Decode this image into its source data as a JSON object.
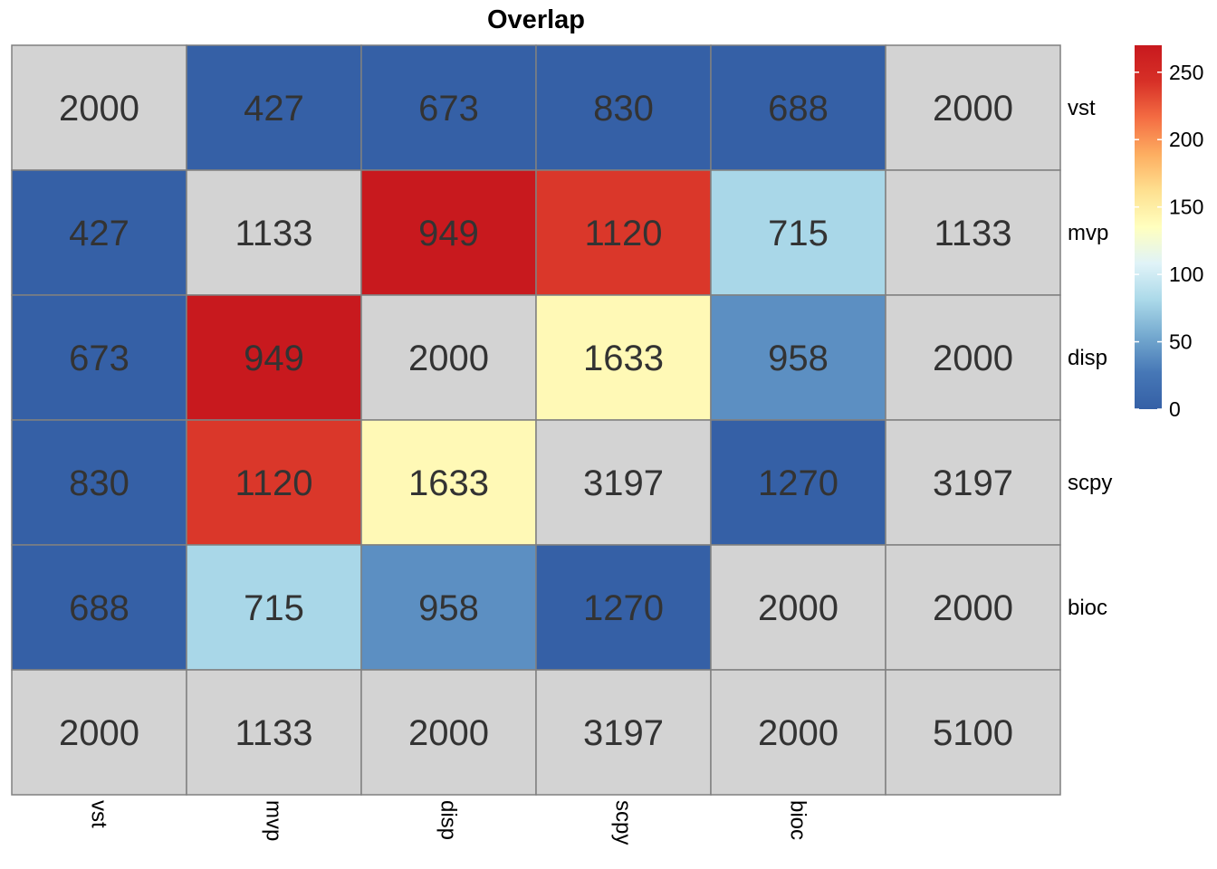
{
  "chart_data": {
    "type": "heatmap",
    "title": "Overlap",
    "row_labels": [
      "vst",
      "mvp",
      "disp",
      "scpy",
      "bioc",
      ""
    ],
    "col_labels": [
      "vst",
      "mvp",
      "disp",
      "scpy",
      "bioc",
      ""
    ],
    "values": [
      [
        2000,
        427,
        673,
        830,
        688,
        2000
      ],
      [
        427,
        1133,
        949,
        1120,
        715,
        1133
      ],
      [
        673,
        949,
        2000,
        1633,
        958,
        2000
      ],
      [
        830,
        1120,
        1633,
        3197,
        1270,
        3197
      ],
      [
        688,
        715,
        958,
        1270,
        2000,
        2000
      ],
      [
        2000,
        1133,
        2000,
        3197,
        2000,
        5100
      ]
    ],
    "fill_levels": [
      [
        null,
        0,
        0,
        0,
        0,
        null
      ],
      [
        0,
        null,
        270,
        240,
        80,
        null
      ],
      [
        0,
        270,
        null,
        140,
        40,
        null
      ],
      [
        0,
        240,
        140,
        null,
        0,
        null
      ],
      [
        0,
        80,
        40,
        0,
        null,
        null
      ],
      [
        null,
        null,
        null,
        null,
        null,
        null
      ]
    ],
    "na_color": "#d3d3d3",
    "cell_border": "#808080",
    "colorscale": {
      "range": [
        0,
        270
      ],
      "ticks": [
        0,
        50,
        100,
        150,
        200,
        250
      ],
      "colors": [
        "#3560a6",
        "#4677b6",
        "#74a9cf",
        "#abd9e9",
        "#e0f3f8",
        "#ffffbf",
        "#fee090",
        "#fdae61",
        "#f46d43",
        "#d73027",
        "#c8191e"
      ]
    },
    "legend_position": "right",
    "grid": false
  }
}
